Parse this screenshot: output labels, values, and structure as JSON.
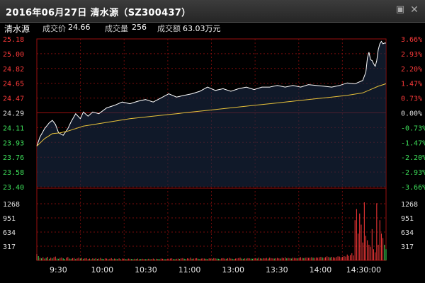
{
  "window": {
    "title": "2016年06月27日  清水源（SZ300437）",
    "minimize_icon": "minimize-icon",
    "close_icon": "close-icon"
  },
  "info": {
    "name": "清水源",
    "price_label": "成交价",
    "price": "24.66",
    "volume_label": "成交量",
    "volume": "256",
    "amount_label": "成交额",
    "amount": "63.03万元"
  },
  "colors": {
    "price_line": "#ffffff",
    "avg_line": "#e8c23a",
    "up": "#ff3a3a",
    "down": "#3ee05a",
    "neutral": "#dddddd",
    "grid": "#9a1010"
  },
  "chart_data": {
    "type": "line",
    "title": "",
    "price_axis": {
      "ticks": [
        "25.18",
        "25.00",
        "24.82",
        "24.65",
        "24.47",
        "24.29",
        "24.11",
        "23.93",
        "23.76",
        "23.58",
        "23.40"
      ],
      "base": 24.29,
      "min": 23.4,
      "max": 25.18
    },
    "pct_axis": {
      "ticks": [
        "3.66%",
        "2.93%",
        "2.20%",
        "1.47%",
        "0.73%",
        "0.00%",
        "-0.73%",
        "-1.47%",
        "-2.20%",
        "-2.93%",
        "-3.66%"
      ]
    },
    "volume_axis": {
      "ticks": [
        "1268",
        "951",
        "634",
        "317"
      ],
      "max": 1585
    },
    "time_axis": {
      "labels": [
        "9:30",
        "10:00",
        "10:30",
        "11:00",
        "13:00",
        "13:30",
        "14:00",
        "14:30:00"
      ]
    },
    "series": [
      {
        "kind": "price",
        "points": [
          [
            0,
            23.89
          ],
          [
            2,
            24.0
          ],
          [
            5,
            24.1
          ],
          [
            8,
            24.17
          ],
          [
            10,
            24.2
          ],
          [
            12,
            24.15
          ],
          [
            14,
            24.05
          ],
          [
            17,
            24.02
          ],
          [
            20,
            24.1
          ],
          [
            22,
            24.18
          ],
          [
            25,
            24.28
          ],
          [
            28,
            24.22
          ],
          [
            30,
            24.3
          ],
          [
            33,
            24.25
          ],
          [
            36,
            24.3
          ],
          [
            40,
            24.28
          ],
          [
            45,
            24.35
          ],
          [
            50,
            24.38
          ],
          [
            55,
            24.42
          ],
          [
            60,
            24.4
          ],
          [
            65,
            24.43
          ],
          [
            70,
            24.45
          ],
          [
            75,
            24.42
          ],
          [
            80,
            24.47
          ],
          [
            85,
            24.52
          ],
          [
            90,
            24.48
          ],
          [
            95,
            24.5
          ],
          [
            100,
            24.52
          ],
          [
            105,
            24.55
          ],
          [
            110,
            24.6
          ],
          [
            115,
            24.56
          ],
          [
            120,
            24.58
          ],
          [
            125,
            24.55
          ],
          [
            130,
            24.58
          ],
          [
            135,
            24.6
          ],
          [
            140,
            24.57
          ],
          [
            145,
            24.6
          ],
          [
            150,
            24.6
          ],
          [
            155,
            24.62
          ],
          [
            160,
            24.6
          ],
          [
            165,
            24.62
          ],
          [
            170,
            24.6
          ],
          [
            175,
            24.63
          ],
          [
            180,
            24.62
          ],
          [
            185,
            24.61
          ],
          [
            190,
            24.6
          ],
          [
            195,
            24.62
          ],
          [
            200,
            24.65
          ],
          [
            205,
            24.64
          ],
          [
            210,
            24.68
          ],
          [
            212,
            24.78
          ],
          [
            213,
            24.95
          ],
          [
            214,
            25.02
          ],
          [
            215,
            24.93
          ],
          [
            216,
            24.92
          ],
          [
            217,
            24.88
          ],
          [
            218,
            24.85
          ],
          [
            219,
            24.92
          ],
          [
            220,
            25.05
          ],
          [
            221,
            25.12
          ],
          [
            222,
            25.15
          ],
          [
            223,
            25.12
          ],
          [
            224,
            25.13
          ],
          [
            225,
            25.13
          ]
        ]
      },
      {
        "kind": "average",
        "points": [
          [
            0,
            23.89
          ],
          [
            5,
            23.98
          ],
          [
            10,
            24.04
          ],
          [
            15,
            24.05
          ],
          [
            20,
            24.07
          ],
          [
            30,
            24.13
          ],
          [
            40,
            24.16
          ],
          [
            50,
            24.19
          ],
          [
            60,
            24.22
          ],
          [
            70,
            24.24
          ],
          [
            80,
            24.26
          ],
          [
            90,
            24.28
          ],
          [
            100,
            24.3
          ],
          [
            110,
            24.32
          ],
          [
            120,
            24.34
          ],
          [
            130,
            24.36
          ],
          [
            140,
            24.38
          ],
          [
            150,
            24.4
          ],
          [
            160,
            24.42
          ],
          [
            170,
            24.44
          ],
          [
            180,
            24.46
          ],
          [
            190,
            24.48
          ],
          [
            200,
            24.5
          ],
          [
            210,
            24.53
          ],
          [
            215,
            24.57
          ],
          [
            220,
            24.61
          ],
          [
            225,
            24.64
          ]
        ]
      },
      {
        "kind": "volume",
        "values": [
          140,
          95,
          60,
          45,
          70,
          40,
          55,
          80,
          35,
          60,
          45,
          70,
          85,
          40,
          35,
          55,
          65,
          45,
          30,
          60,
          75,
          40,
          35,
          50,
          55,
          30,
          45,
          60,
          40,
          55,
          35,
          45,
          50,
          30,
          40,
          25,
          45,
          35,
          50,
          30,
          40,
          55,
          35,
          30,
          45,
          40,
          25,
          35,
          50,
          30,
          40,
          35,
          30,
          45,
          25,
          40,
          35,
          30,
          25,
          40,
          35,
          30,
          25,
          35,
          30,
          40,
          25,
          30,
          35,
          30,
          25,
          30,
          35,
          25,
          30,
          40,
          25,
          35,
          30,
          25,
          40,
          35,
          30,
          25,
          30,
          35,
          40,
          45,
          30,
          25,
          35,
          40,
          30,
          45,
          50,
          35,
          30,
          45,
          40,
          60,
          35,
          40,
          45,
          50,
          35,
          30,
          40,
          45,
          40,
          35,
          30,
          45,
          40,
          35,
          50,
          45,
          40,
          35,
          30,
          45,
          50,
          40,
          35,
          45,
          55,
          40,
          35,
          30,
          40,
          45,
          50,
          60,
          40,
          35,
          45,
          40,
          50,
          45,
          40,
          35,
          45,
          50,
          40,
          60,
          45,
          40,
          50,
          45,
          55,
          40,
          60,
          50,
          45,
          40,
          50,
          55,
          45,
          40,
          60,
          50,
          70,
          45,
          55,
          50,
          40,
          60,
          55,
          50,
          45,
          60,
          70,
          55,
          50,
          60,
          65,
          55,
          60,
          70,
          60,
          55,
          65,
          60,
          70,
          80,
          65,
          60,
          70,
          90,
          75,
          65,
          80,
          70,
          60,
          75,
          90,
          85,
          70,
          80,
          95,
          85,
          130,
          100,
          120,
          160,
          110,
          900,
          1150,
          600,
          1050,
          800,
          400,
          1300,
          550,
          450,
          350,
          300,
          700,
          250,
          180,
          1280,
          350,
          900,
          600,
          500,
          350,
          250
        ],
        "directions": [
          "u",
          "d",
          "u",
          "d",
          "u",
          "u",
          "d",
          "u",
          "d",
          "u",
          "d",
          "u",
          "u",
          "d",
          "d",
          "u",
          "u",
          "d",
          "d",
          "u",
          "u",
          "d",
          "d",
          "u",
          "u",
          "d",
          "u",
          "u",
          "d",
          "u",
          "d",
          "u",
          "u",
          "d",
          "u",
          "d",
          "u",
          "d",
          "u",
          "d",
          "u",
          "u",
          "d",
          "d",
          "u",
          "u",
          "d",
          "u",
          "u",
          "d",
          "u",
          "d",
          "d",
          "u",
          "d",
          "u",
          "u",
          "d",
          "d",
          "u",
          "u",
          "d",
          "d",
          "u",
          "d",
          "u",
          "d",
          "d",
          "u",
          "u",
          "d",
          "d",
          "u",
          "d",
          "u",
          "u",
          "d",
          "u",
          "d",
          "d",
          "u",
          "u",
          "d",
          "d",
          "u",
          "u",
          "u",
          "u",
          "d",
          "d",
          "u",
          "u",
          "d",
          "u",
          "u",
          "d",
          "d",
          "u",
          "u",
          "u",
          "d",
          "u",
          "u",
          "u",
          "d",
          "d",
          "u",
          "u",
          "u",
          "d",
          "d",
          "u",
          "u",
          "d",
          "u",
          "u",
          "d",
          "d",
          "d",
          "u",
          "u",
          "u",
          "d",
          "u",
          "u",
          "u",
          "d",
          "d",
          "u",
          "u",
          "u",
          "u",
          "d",
          "d",
          "u",
          "d",
          "u",
          "u",
          "d",
          "d",
          "u",
          "u",
          "d",
          "u",
          "u",
          "d",
          "u",
          "u",
          "u",
          "d",
          "u",
          "u",
          "u",
          "d",
          "u",
          "u",
          "u",
          "d",
          "u",
          "u",
          "u",
          "d",
          "u",
          "u",
          "d",
          "u",
          "u",
          "u",
          "d",
          "u",
          "u",
          "u",
          "d",
          "u",
          "u",
          "u",
          "u",
          "u",
          "d",
          "u",
          "u",
          "u",
          "u",
          "u",
          "d",
          "u",
          "u",
          "u",
          "u",
          "d",
          "u",
          "u",
          "u",
          "u",
          "u",
          "u",
          "u",
          "u",
          "u",
          "u",
          "u",
          "u",
          "u",
          "u",
          "u",
          "u",
          "u",
          "u",
          "u",
          "u",
          "u",
          "u",
          "u",
          "u",
          "u",
          "u",
          "u",
          "u",
          "u",
          "u",
          "u",
          "u",
          "u",
          "u"
        ]
      }
    ]
  }
}
